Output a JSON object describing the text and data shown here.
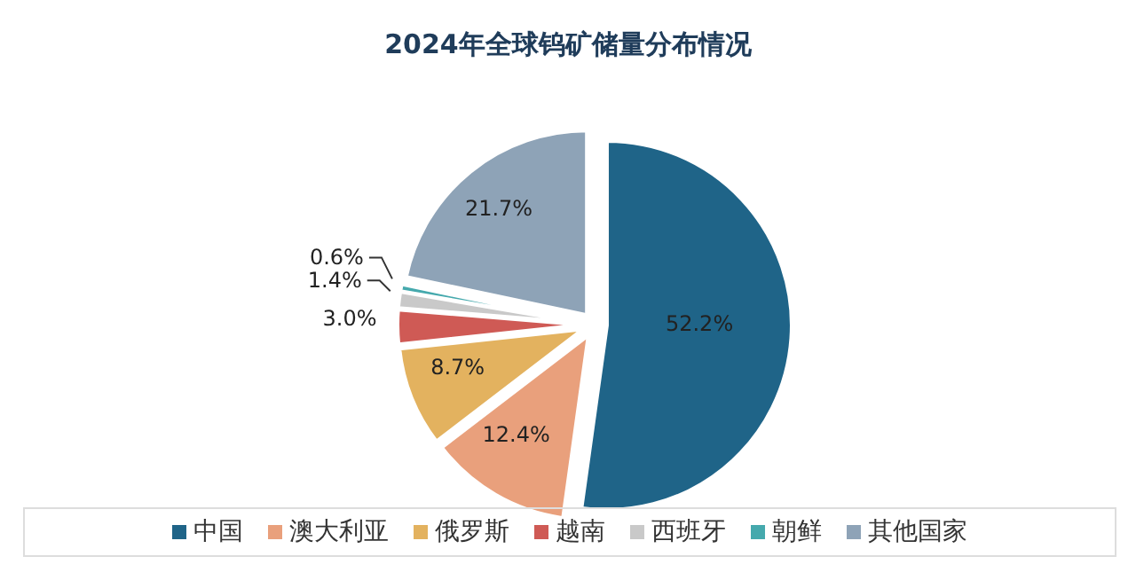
{
  "chart_data": {
    "type": "pie",
    "title": "2024年全球钨矿储量分布情况",
    "categories": [
      "中国",
      "澳大利亚",
      "俄罗斯",
      "越南",
      "西班牙",
      "朝鲜",
      "其他国家"
    ],
    "values": [
      52.2,
      12.4,
      8.7,
      3.0,
      1.4,
      0.6,
      21.7
    ],
    "colors": [
      "#1f6488",
      "#e9a07c",
      "#e3b25f",
      "#cf5a55",
      "#c9c9c9",
      "#45a9ad",
      "#8ea3b7"
    ],
    "value_labels": [
      "52.2%",
      "12.4%",
      "8.7%",
      "3.0%",
      "1.4%",
      "0.6%",
      "21.7%"
    ],
    "legend": "bottom"
  }
}
